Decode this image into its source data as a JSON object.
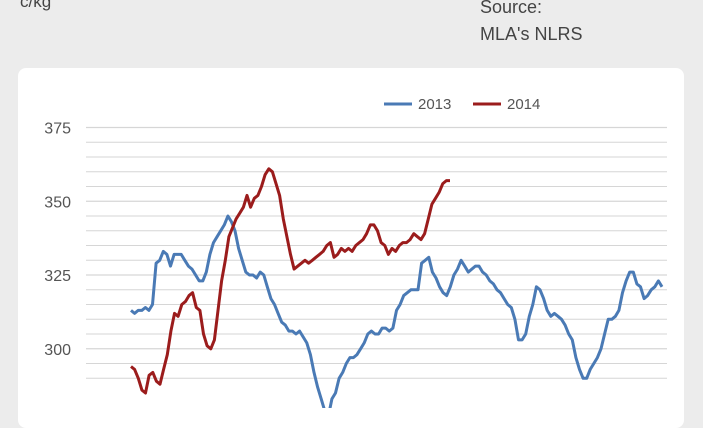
{
  "header": {
    "unit_label": "c/kg",
    "source_line1": "Source:",
    "source_line2": "MLA's NLRS"
  },
  "colors": {
    "series_2013": "#4a7ab5",
    "series_2014": "#9b1c1c",
    "grid": "#d6d6d6",
    "background": "#ececec",
    "panel": "#ffffff"
  },
  "chart_data": {
    "type": "line",
    "title": "",
    "xlabel": "",
    "ylabel": "c/kg",
    "y_ticks": [
      "375",
      "350",
      "325",
      "300"
    ],
    "ylim_visible": [
      290,
      375
    ],
    "grid": true,
    "legend_position": "top-center",
    "series": [
      {
        "name": "2013",
        "color": "#4a7ab5",
        "values": [
          313,
          312,
          313,
          313,
          314,
          313,
          315,
          329,
          330,
          333,
          332,
          328,
          332,
          332,
          332,
          330,
          328,
          327,
          325,
          323,
          323,
          326,
          332,
          336,
          338,
          340,
          342,
          345,
          343,
          340,
          334,
          330,
          326,
          325,
          325,
          324,
          326,
          325,
          321,
          317,
          315,
          312,
          309,
          308,
          306,
          306,
          305,
          306,
          304,
          302,
          298,
          292,
          287,
          283,
          279,
          277,
          283,
          285,
          290,
          292,
          295,
          297,
          297,
          298,
          300,
          302,
          305,
          306,
          305,
          305,
          307,
          307,
          306,
          307,
          313,
          315,
          318,
          319,
          320,
          320,
          320,
          329,
          330,
          331,
          326,
          324,
          321,
          319,
          318,
          321,
          325,
          327,
          330,
          328,
          326,
          327,
          328,
          328,
          326,
          325,
          323,
          322,
          320,
          319,
          317,
          315,
          314,
          310,
          303,
          303,
          305,
          311,
          315,
          321,
          320,
          317,
          313,
          311,
          312,
          311,
          310,
          308,
          305,
          303,
          297,
          293,
          290,
          290,
          293,
          295,
          297,
          300,
          305,
          310,
          310,
          311,
          313,
          319,
          323,
          326,
          326,
          322,
          321,
          317,
          318,
          320,
          321,
          323,
          321
        ]
      },
      {
        "name": "2014",
        "color": "#9b1c1c",
        "values": [
          294,
          293,
          290,
          286,
          285,
          291,
          292,
          289,
          288,
          293,
          298,
          306,
          312,
          311,
          315,
          316,
          318,
          319,
          314,
          313,
          305,
          301,
          300,
          303,
          313,
          323,
          330,
          338,
          341,
          344,
          346,
          348,
          352,
          348,
          351,
          352,
          355,
          359,
          361,
          360,
          356,
          352,
          344,
          338,
          332,
          327,
          328,
          329,
          330,
          329,
          330,
          331,
          332,
          333,
          335,
          336,
          331,
          332,
          334,
          333,
          334,
          333,
          335,
          336,
          337,
          339,
          342,
          342,
          340,
          336,
          335,
          332,
          334,
          333,
          335,
          336,
          336,
          337,
          339,
          338,
          337,
          339,
          344,
          349,
          351,
          353,
          356,
          357,
          357
        ]
      }
    ]
  }
}
